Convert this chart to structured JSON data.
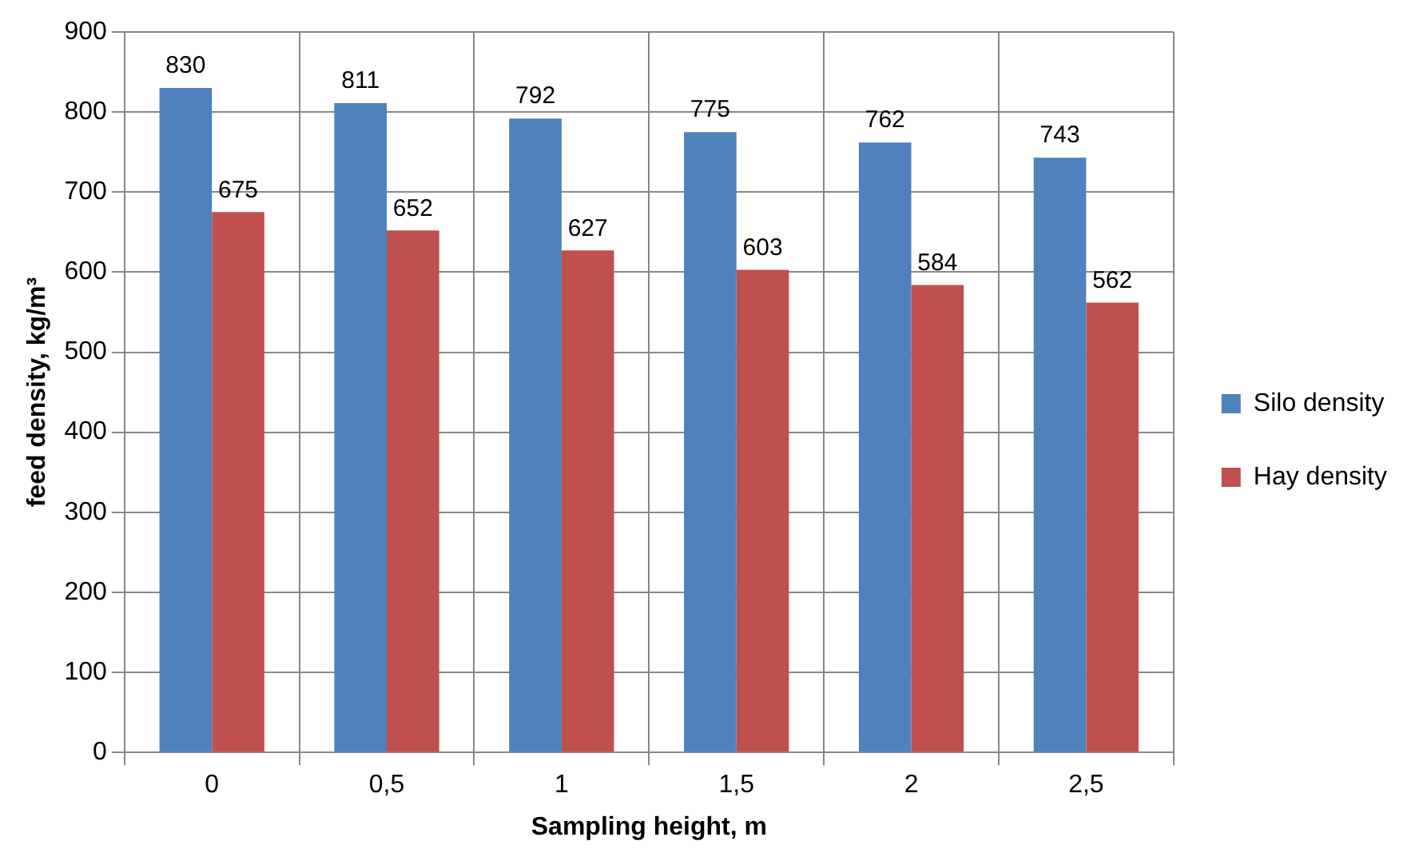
{
  "chart_data": {
    "type": "bar",
    "xlabel": "Sampling height, m",
    "ylabel": "feed density, kg/m³",
    "categories": [
      "0",
      "0,5",
      "1",
      "1,5",
      "2",
      "2,5"
    ],
    "series": [
      {
        "name": "Silo density",
        "color": "#4f81bd",
        "values": [
          830,
          811,
          792,
          775,
          762,
          743
        ]
      },
      {
        "name": "Hay density",
        "color": "#c0504d",
        "values": [
          675,
          652,
          627,
          603,
          584,
          562
        ]
      }
    ],
    "ylim": [
      0,
      900
    ],
    "yticks": [
      0,
      100,
      200,
      300,
      400,
      500,
      600,
      700,
      800,
      900
    ],
    "grid": true,
    "legend": "right",
    "data_labels": true
  }
}
